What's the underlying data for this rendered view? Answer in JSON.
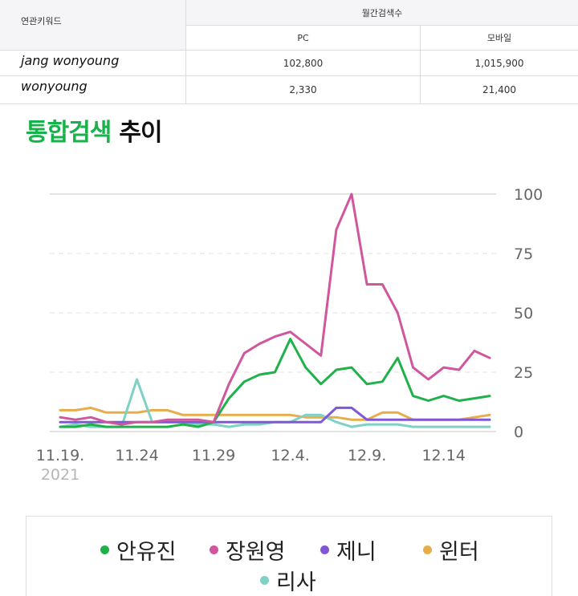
{
  "table": {
    "related_keyword_header": "연관키워드",
    "monthly_header": "월간검색수",
    "pc_header": "PC",
    "mobile_header": "모바일",
    "rows": [
      {
        "keyword": "jang wonyoung",
        "pc": "102,800",
        "mobile": "1,015,900"
      },
      {
        "keyword": "wonyoung",
        "pc": "2,330",
        "mobile": "21,400"
      }
    ]
  },
  "title": {
    "accent": "통합검색",
    "rest": "추이"
  },
  "colors": {
    "accent": "#18b24a"
  },
  "chart_data": {
    "type": "line",
    "x_ticks": [
      "11.19.",
      "11.24",
      "11.29",
      "12.4.",
      "12.9.",
      "12.14"
    ],
    "x_year_label": "2021",
    "y_ticks": [
      "0",
      "25",
      "50",
      "75",
      "100"
    ],
    "ylim": [
      0,
      100
    ],
    "y_axis_position": "right",
    "grid": true,
    "legend_position": "bottom",
    "series": [
      {
        "name": "안유진",
        "color": "#1fb14a",
        "values": [
          2,
          2,
          3,
          2,
          2,
          2,
          2,
          2,
          3,
          2,
          4,
          14,
          21,
          24,
          25,
          39,
          27,
          20,
          26,
          27,
          20,
          21,
          31,
          15,
          13,
          15,
          13,
          14,
          15
        ]
      },
      {
        "name": "장원영",
        "color": "#d0579e",
        "values": [
          6,
          5,
          6,
          4,
          3,
          4,
          4,
          5,
          5,
          5,
          4,
          20,
          33,
          37,
          40,
          42,
          37,
          32,
          85,
          100,
          62,
          62,
          50,
          27,
          22,
          27,
          26,
          34,
          31
        ]
      },
      {
        "name": "제니",
        "color": "#8057d6",
        "values": [
          4,
          4,
          4,
          4,
          4,
          4,
          4,
          4,
          4,
          4,
          4,
          4,
          4,
          4,
          4,
          4,
          4,
          4,
          10,
          10,
          5,
          5,
          5,
          5,
          5,
          5,
          5,
          5,
          5
        ]
      },
      {
        "name": "윈터",
        "color": "#e7ad4b",
        "values": [
          9,
          9,
          10,
          8,
          8,
          8,
          9,
          9,
          7,
          7,
          7,
          7,
          7,
          7,
          7,
          7,
          6,
          6,
          6,
          5,
          5,
          8,
          8,
          5,
          5,
          5,
          5,
          6,
          7
        ]
      },
      {
        "name": "리사",
        "color": "#7dd2c5",
        "values": [
          2,
          3,
          2,
          2,
          2,
          22,
          4,
          4,
          4,
          3,
          3,
          2,
          3,
          3,
          4,
          4,
          7,
          7,
          4,
          2,
          3,
          3,
          3,
          2,
          2,
          2,
          2,
          2,
          2
        ]
      }
    ]
  }
}
